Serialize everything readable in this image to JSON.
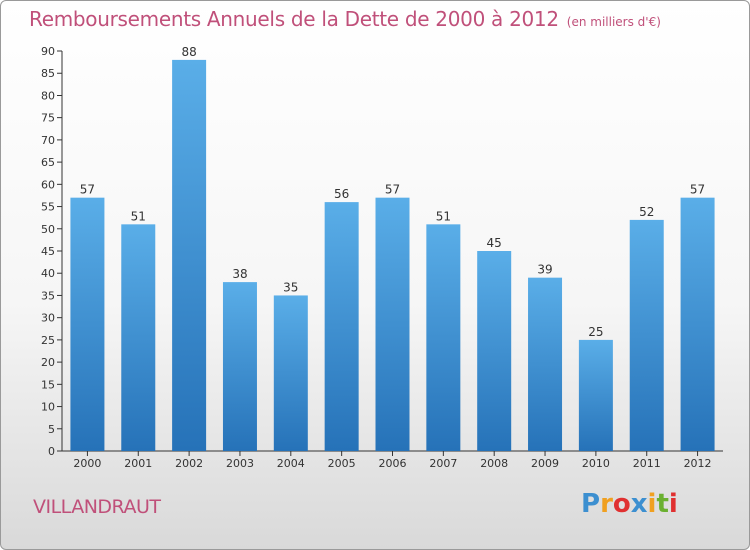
{
  "chart_data": {
    "type": "bar",
    "title": "Remboursements Annuels de la Dette de 2000 à 2012",
    "subtitle": "(en milliers d'€)",
    "categories": [
      "2000",
      "2001",
      "2002",
      "2003",
      "2004",
      "2005",
      "2006",
      "2007",
      "2008",
      "2009",
      "2010",
      "2011",
      "2012"
    ],
    "values": [
      57,
      51,
      88,
      38,
      35,
      56,
      57,
      51,
      45,
      39,
      25,
      52,
      57
    ],
    "ylim": [
      0,
      90
    ],
    "yticks": [
      0,
      5,
      10,
      15,
      20,
      25,
      30,
      35,
      40,
      45,
      50,
      55,
      60,
      65,
      70,
      75,
      80,
      85,
      90
    ],
    "grid": false,
    "bar_color": "#3a8fd8",
    "bar_color_light": "#5aaee8",
    "bar_color_dark": "#2672b8"
  },
  "location": "VILLANDRAUT",
  "logo": {
    "letters": [
      "P",
      "r",
      "o",
      "x",
      "i",
      "t",
      "i"
    ],
    "colors": [
      "#3c8fd0",
      "#f0a020",
      "#e03030",
      "#3c8fd0",
      "#f0a020",
      "#6ab030",
      "#e03030"
    ]
  },
  "colors": {
    "title": "#c0507a",
    "axis": "#333333"
  }
}
